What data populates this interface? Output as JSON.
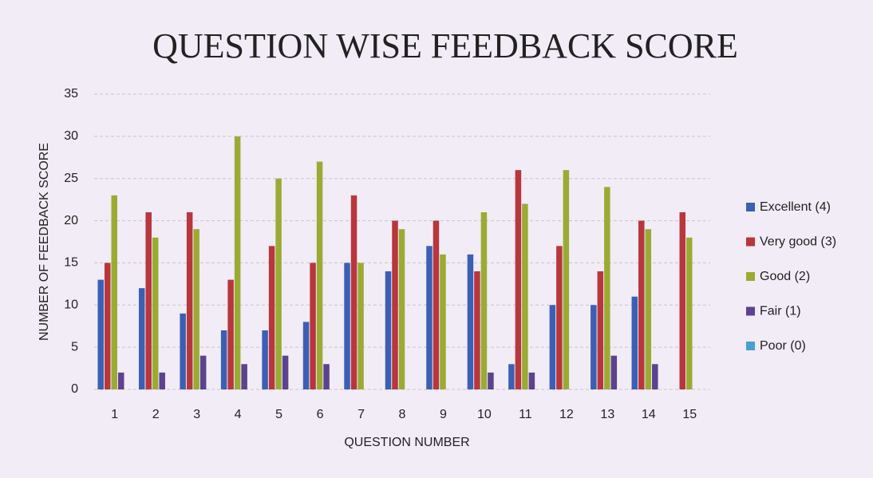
{
  "chart_data": {
    "type": "bar",
    "title": "QUESTION WISE FEEDBACK SCORE",
    "x_label": "QUESTION NUMBER",
    "y_label": "NUMBER OF FEEDBACK SCORE",
    "categories": [
      "1",
      "2",
      "3",
      "4",
      "5",
      "6",
      "7",
      "8",
      "9",
      "10",
      "11",
      "12",
      "13",
      "14",
      "15"
    ],
    "series": [
      {
        "name": "Excellent (4)",
        "color": "#3b5fb4",
        "values": [
          13,
          12,
          9,
          7,
          7,
          8,
          15,
          14,
          17,
          16,
          3,
          10,
          10,
          11,
          0
        ]
      },
      {
        "name": "Very good (3)",
        "color": "#b8363d",
        "values": [
          15,
          21,
          21,
          13,
          17,
          15,
          23,
          20,
          20,
          14,
          26,
          17,
          14,
          20,
          21
        ]
      },
      {
        "name": "Good (2)",
        "color": "#9aab34",
        "values": [
          23,
          18,
          19,
          30,
          25,
          27,
          15,
          19,
          16,
          21,
          22,
          26,
          24,
          19,
          18
        ]
      },
      {
        "name": "Fair (1)",
        "color": "#5c428f",
        "values": [
          2,
          2,
          4,
          3,
          4,
          3,
          0,
          0,
          0,
          2,
          2,
          0,
          4,
          3,
          0
        ]
      },
      {
        "name": "Poor (0)",
        "color": "#4a9fd2",
        "values": [
          0,
          0,
          0,
          0,
          0,
          0,
          0,
          0,
          0,
          0,
          0,
          0,
          0,
          0,
          0
        ]
      }
    ],
    "ylim": [
      0,
      35
    ],
    "yticks": [
      0,
      5,
      10,
      15,
      20,
      25,
      30,
      35
    ],
    "grid": true,
    "legend": "right"
  }
}
